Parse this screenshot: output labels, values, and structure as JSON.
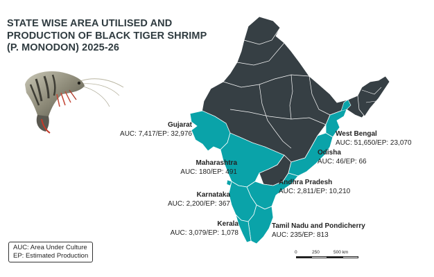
{
  "title": {
    "line1": "STATE WISE AREA UTILISED AND",
    "line2": "PRODUCTION OF BLACK TIGER SHRIMP",
    "line3": "(P. MONODON) 2025-26"
  },
  "colors": {
    "highlight": "#0aa3a9",
    "dark": "#363f44",
    "border": "#ffffff",
    "title": "#2f3b40"
  },
  "states": {
    "gujarat": {
      "name": "Gujarat",
      "value": "AUC: 7,417/EP: 32,976"
    },
    "maharashtra": {
      "name": "Maharashtra",
      "value": "AUC: 180/EP: 491"
    },
    "karnataka": {
      "name": "Karnataka",
      "value": "AUC: 2,200/EP: 367"
    },
    "kerala": {
      "name": "Kerala",
      "value": "AUC: 3,079/EP: 1,078"
    },
    "west_bengal": {
      "name": "West Bengal",
      "value": "AUC: 51,650/EP: 23,070"
    },
    "odisha": {
      "name": "Odisha",
      "value": "AUC: 46/EP: 66"
    },
    "andhra_pradesh": {
      "name": "Andhra Pradesh",
      "value": "AUC: 2,811/EP: 10,210"
    },
    "tamil_nadu": {
      "name": "Tamil Nadu and Pondicherry",
      "value": "AUC: 235/EP: 813"
    }
  },
  "legend": {
    "line1": "AUC: Area Under Culture",
    "line2": "EP: Estimated Production"
  },
  "scale": {
    "tick0": "0",
    "tick1": "250",
    "tick2": "500 km"
  }
}
